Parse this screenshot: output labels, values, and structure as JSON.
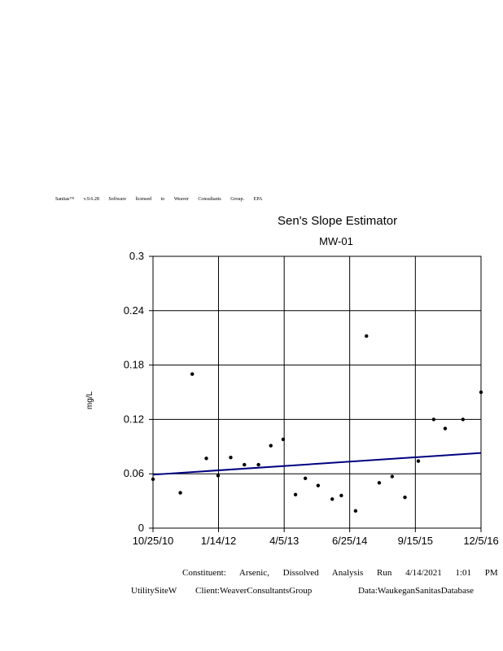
{
  "header": {
    "banner": "Sanitas™ v.9.6.28 Software licensed to Weaver Consultants Group. EPA"
  },
  "footer": {
    "constituent": "Constituent: Arsenic, Dissolved Analysis Run 4/14/2021 1:01 PM",
    "site": "UtilitySiteW",
    "client": "Client:WeaverConsultantsGroup",
    "data": "Data:WaukeganSanitasDatabase"
  },
  "chart_data": {
    "type": "scatter",
    "title": "Sen's Slope Estimator",
    "subtitle": "MW-01",
    "ylabel": "mg/L",
    "xlabel": "",
    "ylim": [
      0,
      0.3
    ],
    "y_ticks": [
      "0",
      "0.06",
      "0.12",
      "0.18",
      "0.24",
      "0.3"
    ],
    "y_tick_values": [
      0,
      0.06,
      0.12,
      0.18,
      0.24,
      0.3
    ],
    "x_ticks": [
      "10/25/10",
      "1/14/12",
      "4/5/13",
      "6/25/14",
      "9/15/15",
      "12/5/16"
    ],
    "x_tick_values": [
      "2010-10-25",
      "2012-01-14",
      "2013-04-05",
      "2014-06-25",
      "2015-09-15",
      "2016-12-05"
    ],
    "xlim": [
      "2010-10-25",
      "2016-12-05"
    ],
    "grid": true,
    "colors": {
      "points": "#000000",
      "trend": "#000080"
    },
    "series": [
      {
        "x": [
          "2010-10-25",
          "2011-04-29",
          "2011-07-19",
          "2011-10-23",
          "2012-01-11",
          "2012-04-06",
          "2012-07-08",
          "2012-10-12",
          "2013-01-04",
          "2013-03-29",
          "2013-06-21",
          "2013-08-27",
          "2013-11-22",
          "2014-02-26",
          "2014-04-29",
          "2014-08-04",
          "2014-10-17",
          "2015-01-12",
          "2015-04-10",
          "2015-07-06",
          "2015-10-05",
          "2016-01-18",
          "2016-04-05",
          "2016-08-04",
          "2016-12-05"
        ],
        "y": [
          0.054,
          0.039,
          0.17,
          0.077,
          0.058,
          0.078,
          0.07,
          0.07,
          0.091,
          0.098,
          0.037,
          0.055,
          0.047,
          0.032,
          0.036,
          0.019,
          0.212,
          0.05,
          0.057,
          0.034,
          0.074,
          0.12,
          0.11,
          0.12,
          0.15
        ]
      }
    ],
    "trend_line": {
      "x": [
        "2010-10-25",
        "2016-12-05"
      ],
      "y": [
        0.059,
        0.083
      ]
    }
  }
}
